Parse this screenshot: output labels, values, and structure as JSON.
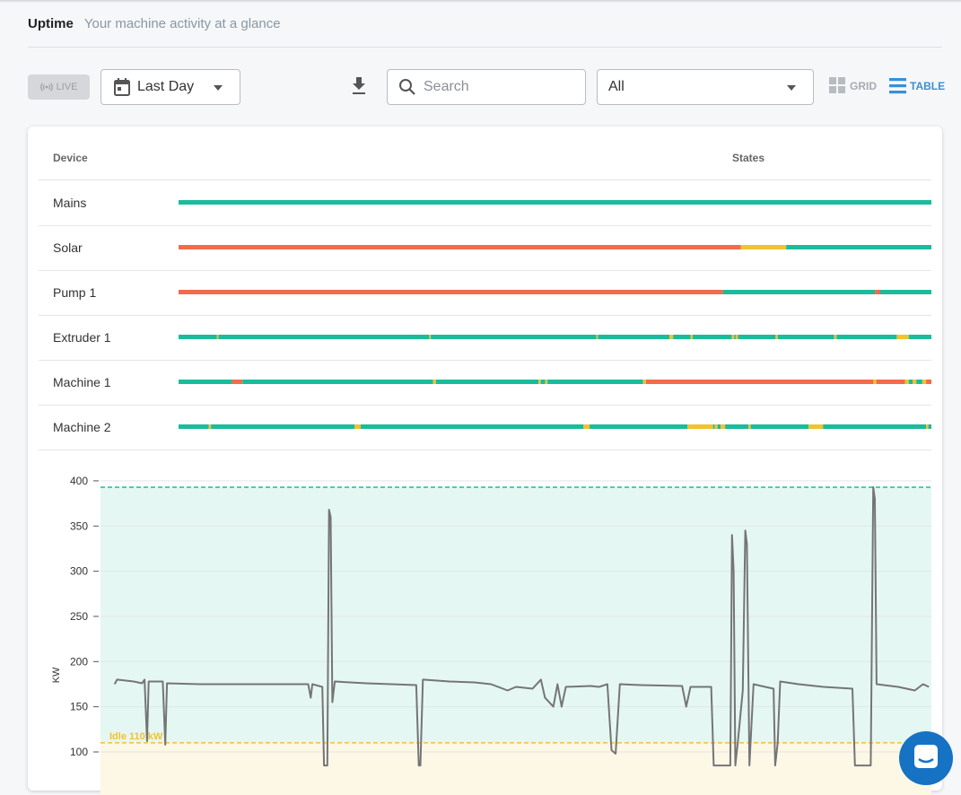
{
  "header": {
    "title": "Uptime",
    "subtitle": "Your machine activity at a glance"
  },
  "toolbar": {
    "live_label": "LIVE",
    "period_value": "Last Day",
    "search_placeholder": "Search",
    "filter_value": "All",
    "grid_label": "GRID",
    "table_label": "TABLE"
  },
  "colors": {
    "running": "#1abc9c",
    "idle": "#f1c232",
    "off": "#f26b4b",
    "accent": "#3b8fd4"
  },
  "table": {
    "columns": [
      "Device",
      "States"
    ],
    "rows": [
      {
        "name": "Mains",
        "segments": [
          [
            0,
            1,
            "running"
          ]
        ]
      },
      {
        "name": "Solar",
        "segments": [
          [
            0,
            0.747,
            "off"
          ],
          [
            0.747,
            0.807,
            "idle"
          ],
          [
            0.807,
            1,
            "running"
          ]
        ]
      },
      {
        "name": "Pump 1",
        "segments": [
          [
            0,
            0.723,
            "off"
          ],
          [
            0.723,
            0.925,
            "running"
          ],
          [
            0.925,
            0.932,
            "off"
          ],
          [
            0.932,
            1,
            "running"
          ]
        ]
      },
      {
        "name": "Extruder 1",
        "segments": [
          [
            0,
            0.051,
            "running"
          ],
          [
            0.051,
            0.053,
            "idle"
          ],
          [
            0.053,
            0.333,
            "running"
          ],
          [
            0.333,
            0.335,
            "idle"
          ],
          [
            0.335,
            0.555,
            "running"
          ],
          [
            0.555,
            0.557,
            "idle"
          ],
          [
            0.557,
            0.652,
            "running"
          ],
          [
            0.652,
            0.657,
            "idle"
          ],
          [
            0.657,
            0.68,
            "running"
          ],
          [
            0.68,
            0.683,
            "idle"
          ],
          [
            0.683,
            0.735,
            "running"
          ],
          [
            0.735,
            0.738,
            "idle"
          ],
          [
            0.738,
            0.74,
            "running"
          ],
          [
            0.74,
            0.743,
            "idle"
          ],
          [
            0.743,
            0.793,
            "running"
          ],
          [
            0.793,
            0.796,
            "idle"
          ],
          [
            0.796,
            0.871,
            "running"
          ],
          [
            0.871,
            0.874,
            "idle"
          ],
          [
            0.874,
            0.954,
            "running"
          ],
          [
            0.954,
            0.97,
            "idle"
          ],
          [
            0.97,
            1,
            "running"
          ]
        ]
      },
      {
        "name": "Machine 1",
        "segments": [
          [
            0,
            0.071,
            "running"
          ],
          [
            0.071,
            0.085,
            "off"
          ],
          [
            0.085,
            0.338,
            "running"
          ],
          [
            0.338,
            0.342,
            "idle"
          ],
          [
            0.342,
            0.478,
            "running"
          ],
          [
            0.478,
            0.481,
            "idle"
          ],
          [
            0.481,
            0.487,
            "running"
          ],
          [
            0.487,
            0.49,
            "idle"
          ],
          [
            0.49,
            0.617,
            "running"
          ],
          [
            0.617,
            0.621,
            "idle"
          ],
          [
            0.621,
            0.923,
            "off"
          ],
          [
            0.923,
            0.927,
            "idle"
          ],
          [
            0.927,
            0.92,
            "running"
          ],
          [
            0.927,
            0.965,
            "off"
          ],
          [
            0.965,
            0.97,
            "idle"
          ],
          [
            0.97,
            0.975,
            "running"
          ],
          [
            0.975,
            0.98,
            "idle"
          ],
          [
            0.98,
            0.988,
            "running"
          ],
          [
            0.988,
            0.993,
            "idle"
          ],
          [
            0.993,
            1,
            "off"
          ]
        ]
      },
      {
        "name": "Machine 2",
        "segments": [
          [
            0,
            0.04,
            "running"
          ],
          [
            0.04,
            0.043,
            "idle"
          ],
          [
            0.043,
            0.234,
            "running"
          ],
          [
            0.234,
            0.242,
            "idle"
          ],
          [
            0.242,
            0.538,
            "running"
          ],
          [
            0.538,
            0.546,
            "idle"
          ],
          [
            0.546,
            0.676,
            "running"
          ],
          [
            0.676,
            0.71,
            "idle"
          ],
          [
            0.71,
            0.712,
            "running"
          ],
          [
            0.712,
            0.716,
            "idle"
          ],
          [
            0.716,
            0.72,
            "running"
          ],
          [
            0.72,
            0.726,
            "idle"
          ],
          [
            0.726,
            0.757,
            "running"
          ],
          [
            0.757,
            0.76,
            "idle"
          ],
          [
            0.76,
            0.837,
            "running"
          ],
          [
            0.837,
            0.856,
            "idle"
          ],
          [
            0.856,
            0.993,
            "running"
          ],
          [
            0.993,
            0.996,
            "idle"
          ],
          [
            0.996,
            1,
            "running"
          ]
        ]
      }
    ]
  },
  "chart_data": {
    "type": "line",
    "ylabel": "KW",
    "yticks": [
      100,
      150,
      200,
      250,
      300,
      350,
      400
    ],
    "ylim": [
      85,
      408
    ],
    "max_line": 393,
    "idle_line": 110,
    "idle_label": "Idle 110 kW",
    "series": [
      {
        "values": [
          [
            0.017,
            175
          ],
          [
            0.02,
            180
          ],
          [
            0.04,
            178
          ],
          [
            0.05,
            176
          ],
          [
            0.053,
            180
          ],
          [
            0.056,
            112
          ],
          [
            0.058,
            178
          ],
          [
            0.075,
            178
          ],
          [
            0.078,
            108
          ],
          [
            0.08,
            176
          ],
          [
            0.12,
            175
          ],
          [
            0.25,
            175
          ],
          [
            0.253,
            160
          ],
          [
            0.255,
            175
          ],
          [
            0.267,
            172
          ],
          [
            0.269,
            85
          ],
          [
            0.27,
            85
          ],
          [
            0.273,
            85
          ],
          [
            0.275,
            368
          ],
          [
            0.277,
            360
          ],
          [
            0.279,
            155
          ],
          [
            0.282,
            178
          ],
          [
            0.32,
            176
          ],
          [
            0.35,
            175
          ],
          [
            0.38,
            174
          ],
          [
            0.383,
            85
          ],
          [
            0.385,
            85
          ],
          [
            0.388,
            180
          ],
          [
            0.42,
            178
          ],
          [
            0.45,
            177
          ],
          [
            0.47,
            175
          ],
          [
            0.49,
            168
          ],
          [
            0.5,
            172
          ],
          [
            0.52,
            170
          ],
          [
            0.53,
            180
          ],
          [
            0.535,
            160
          ],
          [
            0.545,
            150
          ],
          [
            0.55,
            175
          ],
          [
            0.555,
            150
          ],
          [
            0.56,
            172
          ],
          [
            0.59,
            173
          ],
          [
            0.6,
            172
          ],
          [
            0.61,
            175
          ],
          [
            0.615,
            102
          ],
          [
            0.62,
            98
          ],
          [
            0.625,
            175
          ],
          [
            0.65,
            174
          ],
          [
            0.7,
            173
          ],
          [
            0.705,
            150
          ],
          [
            0.71,
            172
          ],
          [
            0.735,
            172
          ],
          [
            0.738,
            85
          ],
          [
            0.74,
            85
          ],
          [
            0.75,
            85
          ],
          [
            0.758,
            85
          ],
          [
            0.76,
            340
          ],
          [
            0.762,
            300
          ],
          [
            0.764,
            85
          ],
          [
            0.767,
            110
          ],
          [
            0.773,
            168
          ],
          [
            0.776,
            345
          ],
          [
            0.778,
            330
          ],
          [
            0.781,
            85
          ],
          [
            0.786,
            175
          ],
          [
            0.8,
            172
          ],
          [
            0.81,
            170
          ],
          [
            0.812,
            85
          ],
          [
            0.815,
            110
          ],
          [
            0.818,
            178
          ],
          [
            0.84,
            175
          ],
          [
            0.87,
            172
          ],
          [
            0.905,
            170
          ],
          [
            0.908,
            85
          ],
          [
            0.91,
            85
          ],
          [
            0.927,
            85
          ],
          [
            0.93,
            393
          ],
          [
            0.932,
            380
          ],
          [
            0.934,
            175
          ],
          [
            0.96,
            172
          ],
          [
            0.98,
            168
          ],
          [
            0.99,
            175
          ],
          [
            0.997,
            172
          ]
        ]
      }
    ]
  }
}
